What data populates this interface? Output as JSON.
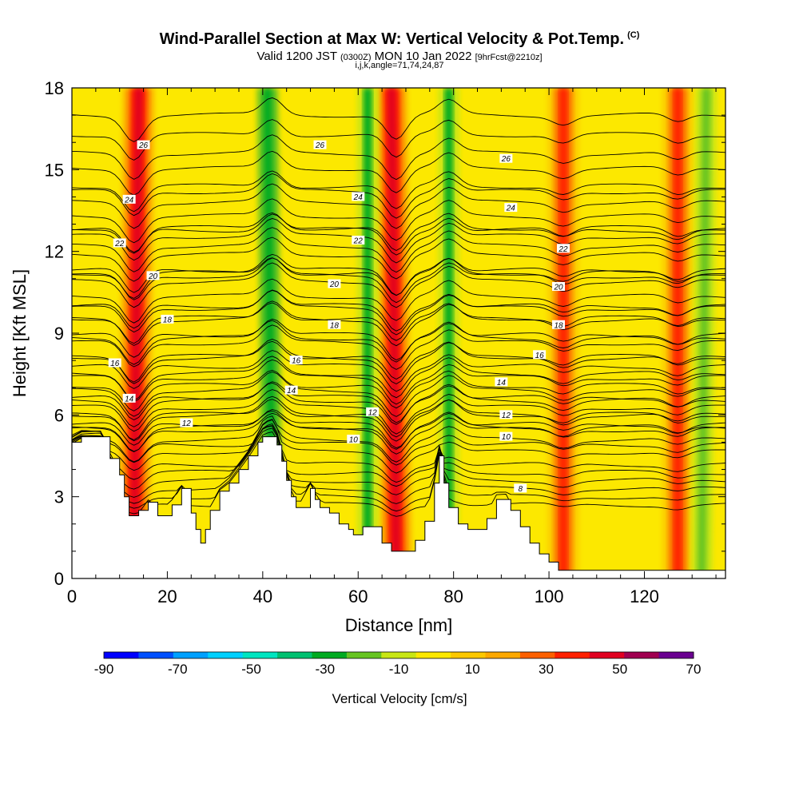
{
  "header": {
    "title": "Wind-Parallel Section at Max W: Vertical Velocity & Pot.Temp.",
    "title_tag": "(C)",
    "valid_prefix": "Valid 1200 JST",
    "valid_zulu": "(0300Z)",
    "valid_date": "MON 10 Jan 2022",
    "forecast": "[9hrFcst@2210z]",
    "indices": "i,j,k,angle=71,74,24,87"
  },
  "chart_data": {
    "type": "heatmap",
    "xlabel": "Distance [nm]",
    "ylabel": "Height [Kft MSL]",
    "xlim": [
      0,
      137
    ],
    "ylim": [
      0,
      18
    ],
    "x_ticks": [
      0,
      20,
      40,
      60,
      80,
      100,
      120
    ],
    "y_ticks": [
      0,
      3,
      6,
      9,
      12,
      15,
      18
    ],
    "colorbar": {
      "label": "Vertical Velocity [cm/s]",
      "tick_labels": [
        "-90",
        "-70",
        "-50",
        "-30",
        "-10",
        "10",
        "30",
        "50",
        "70"
      ],
      "bounds": [
        -90,
        70
      ],
      "colors": [
        "#0000ff",
        "#0050ff",
        "#00a0ff",
        "#00d0ff",
        "#00e5c0",
        "#00c070",
        "#00aa20",
        "#66c420",
        "#c8e614",
        "#fce800",
        "#fcc800",
        "#fca800",
        "#fc6000",
        "#ff2000",
        "#e00020",
        "#a00050",
        "#6a0090"
      ]
    },
    "terrain": [
      [
        0,
        5.0
      ],
      [
        2,
        5.2
      ],
      [
        6,
        5.2
      ],
      [
        8,
        4.4
      ],
      [
        10,
        3.8
      ],
      [
        11,
        3.0
      ],
      [
        12,
        2.3
      ],
      [
        14,
        2.5
      ],
      [
        16,
        2.8
      ],
      [
        18,
        2.3
      ],
      [
        20,
        2.3
      ],
      [
        21,
        2.7
      ],
      [
        23,
        3.3
      ],
      [
        25,
        2.4
      ],
      [
        26,
        1.8
      ],
      [
        27,
        1.3
      ],
      [
        28,
        1.8
      ],
      [
        29,
        2.5
      ],
      [
        31,
        3.2
      ],
      [
        33,
        3.5
      ],
      [
        35,
        4.0
      ],
      [
        37,
        4.5
      ],
      [
        39,
        5.0
      ],
      [
        40,
        5.2
      ],
      [
        42,
        5.2
      ],
      [
        43,
        4.9
      ],
      [
        44,
        4.3
      ],
      [
        45,
        3.6
      ],
      [
        46,
        3.0
      ],
      [
        47,
        2.6
      ],
      [
        48,
        2.6
      ],
      [
        50,
        3.3
      ],
      [
        51,
        2.9
      ],
      [
        52,
        2.6
      ],
      [
        54,
        2.4
      ],
      [
        56,
        2.0
      ],
      [
        58,
        1.8
      ],
      [
        59,
        1.6
      ],
      [
        61,
        1.9
      ],
      [
        63,
        1.9
      ],
      [
        65,
        1.3
      ],
      [
        67,
        1.0
      ],
      [
        69,
        1.0
      ],
      [
        70,
        1.0
      ],
      [
        72,
        1.4
      ],
      [
        74,
        2.1
      ],
      [
        76,
        3.5
      ],
      [
        77,
        4.5
      ],
      [
        78,
        3.5
      ],
      [
        79,
        2.6
      ],
      [
        81,
        2.0
      ],
      [
        83,
        1.8
      ],
      [
        85,
        1.8
      ],
      [
        87,
        2.2
      ],
      [
        89,
        2.9
      ],
      [
        91,
        2.9
      ],
      [
        92,
        2.5
      ],
      [
        94,
        1.9
      ],
      [
        96,
        1.3
      ],
      [
        98,
        0.9
      ],
      [
        100,
        0.6
      ],
      [
        102,
        0.3
      ],
      [
        105,
        0.3
      ],
      [
        108,
        0.3
      ],
      [
        137,
        0.3
      ]
    ],
    "updraft_bands": [
      {
        "base_x": 13,
        "top_x": 14,
        "w": 45
      },
      {
        "base_x": 68,
        "top_x": 67,
        "w": 45
      },
      {
        "base_x": 103,
        "top_x": 103,
        "w": 35
      },
      {
        "base_x": 127,
        "top_x": 127,
        "w": 35
      }
    ],
    "downdraft_bands": [
      {
        "base_x": 42,
        "top_x": 41,
        "w": -30
      },
      {
        "base_x": 62,
        "top_x": 62,
        "w": -25
      },
      {
        "base_x": 79,
        "top_x": 79,
        "w": -25
      },
      {
        "base_x": 132,
        "top_x": 133,
        "w": -15
      }
    ],
    "isentropes": [
      {
        "theta": 8,
        "height": 3.3
      },
      {
        "theta": 10,
        "height": 5.1
      },
      {
        "theta": 12,
        "height": 6.0
      },
      {
        "theta": 14,
        "height": 6.9
      },
      {
        "theta": 16,
        "height": 8.1
      },
      {
        "theta": 18,
        "height": 9.5
      },
      {
        "theta": 20,
        "height": 10.9
      },
      {
        "theta": 22,
        "height": 12.2
      },
      {
        "theta": 24,
        "height": 13.8
      },
      {
        "theta": 26,
        "height": 15.6
      }
    ],
    "contour_labels": [
      {
        "text": "26",
        "x": 15,
        "y": 15.9
      },
      {
        "text": "26",
        "x": 52,
        "y": 15.9
      },
      {
        "text": "26",
        "x": 91,
        "y": 15.4
      },
      {
        "text": "24",
        "x": 12,
        "y": 13.9
      },
      {
        "text": "24",
        "x": 60,
        "y": 14.0
      },
      {
        "text": "24",
        "x": 92,
        "y": 13.6
      },
      {
        "text": "22",
        "x": 10,
        "y": 12.3
      },
      {
        "text": "22",
        "x": 60,
        "y": 12.4
      },
      {
        "text": "22",
        "x": 103,
        "y": 12.1
      },
      {
        "text": "20",
        "x": 17,
        "y": 11.1
      },
      {
        "text": "20",
        "x": 55,
        "y": 10.8
      },
      {
        "text": "20",
        "x": 102,
        "y": 10.7
      },
      {
        "text": "18",
        "x": 20,
        "y": 9.5
      },
      {
        "text": "18",
        "x": 55,
        "y": 9.3
      },
      {
        "text": "18",
        "x": 102,
        "y": 9.3
      },
      {
        "text": "16",
        "x": 9,
        "y": 7.9
      },
      {
        "text": "16",
        "x": 47,
        "y": 8.0
      },
      {
        "text": "16",
        "x": 98,
        "y": 8.2
      },
      {
        "text": "14",
        "x": 12,
        "y": 6.6
      },
      {
        "text": "14",
        "x": 46,
        "y": 6.9
      },
      {
        "text": "14",
        "x": 90,
        "y": 7.2
      },
      {
        "text": "12",
        "x": 24,
        "y": 5.7
      },
      {
        "text": "12",
        "x": 63,
        "y": 6.1
      },
      {
        "text": "12",
        "x": 91,
        "y": 6.0
      },
      {
        "text": "10",
        "x": 59,
        "y": 5.1
      },
      {
        "text": "10",
        "x": 91,
        "y": 5.2
      },
      {
        "text": "8",
        "x": 94,
        "y": 3.3
      }
    ]
  }
}
